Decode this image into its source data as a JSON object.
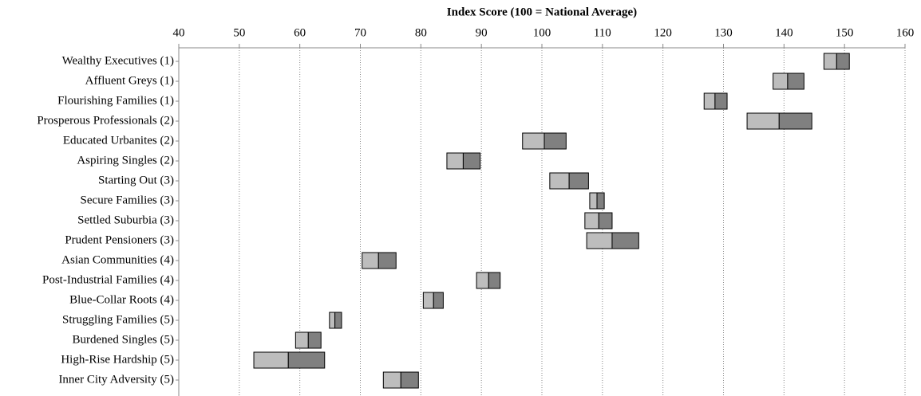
{
  "chart_data": {
    "type": "floating-bar",
    "x_label": "Index Score (100 = National Average)",
    "categories": [
      "Wealthy Executives (1)",
      "Affluent Greys (1)",
      "Flourishing Families (1)",
      "Prosperous Professionals (2)",
      "Educated Urbanites (2)",
      "Aspiring Singles (2)",
      "Starting Out (3)",
      "Secure Families (3)",
      "Settled Suburbia (3)",
      "Prudent Pensioners (3)",
      "Asian Communities (4)",
      "Post-Industrial Families (4)",
      "Blue-Collar Roots (4)",
      "Struggling Families (5)",
      "Burdened Singles (5)",
      "High-Rise Hardship (5)",
      "Inner City Adversity (5)"
    ],
    "low": [
      146.6,
      138.2,
      126.8,
      133.9,
      96.8,
      84.3,
      101.3,
      107.9,
      107.1,
      107.4,
      70.3,
      89.2,
      80.4,
      64.9,
      59.3,
      52.4,
      73.8
    ],
    "mid": [
      148.7,
      140.6,
      128.6,
      139.2,
      100.4,
      87.0,
      104.5,
      109.1,
      109.4,
      111.6,
      73.0,
      91.2,
      82.1,
      65.8,
      61.4,
      58.1,
      76.7
    ],
    "high": [
      150.8,
      143.3,
      130.6,
      144.6,
      104.0,
      89.8,
      107.7,
      110.3,
      111.6,
      116.0,
      75.9,
      93.1,
      83.7,
      66.9,
      63.5,
      64.1,
      79.6
    ],
    "low_color": "#bdbdbd",
    "high_color": "#808080",
    "xlim": [
      40,
      160
    ],
    "xticks": [
      40,
      50,
      60,
      70,
      80,
      90,
      100,
      110,
      120,
      130,
      140,
      150,
      160
    ],
    "grid": true
  }
}
